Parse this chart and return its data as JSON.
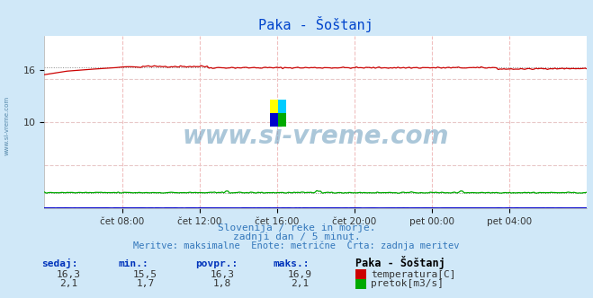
{
  "title": "Paka - Šoštanj",
  "bg_color": "#d0e8f8",
  "plot_bg_color": "#ffffff",
  "grid_v_color": "#f0c0c0",
  "grid_h_color": "#e8c8c8",
  "avg_line_color": "#888888",
  "temp_color": "#cc0000",
  "flow_color": "#00aa00",
  "height_color": "#0000cc",
  "ylim": [
    0,
    20
  ],
  "ytick_labels": [
    "10",
    "16"
  ],
  "ytick_values": [
    10,
    16
  ],
  "xlabel_times": [
    "čet 08:00",
    "čet 12:00",
    "čet 16:00",
    "čet 20:00",
    "pet 00:00",
    "pet 04:00"
  ],
  "watermark_text": "www.si-vreme.com",
  "watermark_color": "#6699bb",
  "watermark_alpha": 0.55,
  "side_text": "www.si-vreme.com",
  "subtitle1": "Slovenija / reke in morje.",
  "subtitle2": "zadnji dan / 5 minut.",
  "subtitle3": "Meritve: maksimalne  Enote: metrične  Črta: zadnja meritev",
  "subtitle_color": "#3377bb",
  "stat_headers": [
    "sedaj:",
    "min.:",
    "povpr.:",
    "maks.:"
  ],
  "stat_color": "#0033bb",
  "stat_values_temp": [
    "16,3",
    "15,5",
    "16,3",
    "16,9"
  ],
  "stat_values_flow": [
    "2,1",
    "1,7",
    "1,8",
    "2,1"
  ],
  "stat_value_color": "#333333",
  "legend_station": "Paka - Šoštanj",
  "legend_temp": "temperatura[C]",
  "legend_flow": "pretok[m3/s]",
  "temp_avg": 16.3,
  "flow_avg": 1.8,
  "n_points": 288,
  "logo_colors": [
    "#ffff00",
    "#00ccff",
    "#0000cc",
    "#00aa00"
  ]
}
